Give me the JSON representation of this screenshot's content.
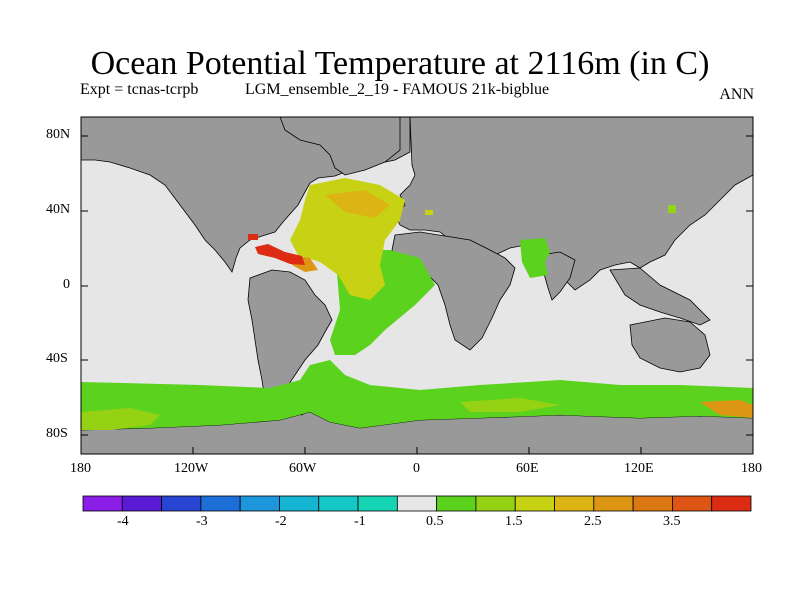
{
  "header": {
    "title": "Ocean Potential Temperature at 2116m (in C)",
    "expt": "Expt = tcnas-tcrpb",
    "run": "LGM_ensemble_2_19 - FAMOUS 21k-bigblue",
    "period": "ANN"
  },
  "map": {
    "y_ticks": [
      "80N",
      "40N",
      "0",
      "40S",
      "80S"
    ],
    "x_ticks": [
      "180",
      "120W",
      "60W",
      "0",
      "60E",
      "120E",
      "180"
    ],
    "colors": {
      "land": "#999999",
      "missing": "#e6e6e6",
      "coast": "#000000"
    }
  },
  "colorbar": {
    "colors": [
      "#8a1de6",
      "#5a19d4",
      "#2844d2",
      "#1e6ed8",
      "#1e96dc",
      "#14b4d2",
      "#14c8c8",
      "#14d4b4",
      "#e6e6e6",
      "#5ad21e",
      "#96d214",
      "#c8d214",
      "#dcb414",
      "#dc9614",
      "#dc7814",
      "#dc5514",
      "#dc2d14"
    ],
    "labels": [
      "-4",
      "-3",
      "-2",
      "-1",
      "0.5",
      "1.5",
      "2.5",
      "3.5"
    ]
  }
}
